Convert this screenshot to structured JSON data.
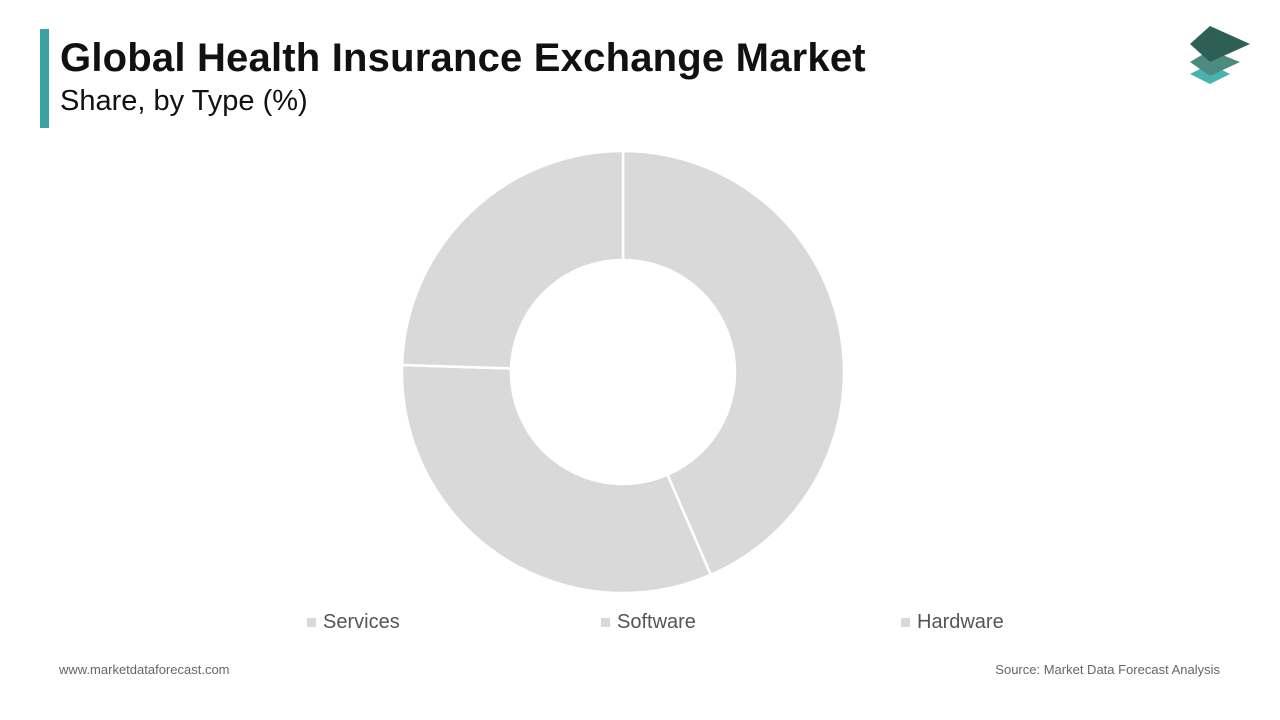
{
  "header": {
    "title": "Global Health Insurance Exchange Market",
    "subtitle": "Share, by Type (%)"
  },
  "colors": {
    "accent": "#3aa39d",
    "slice": "#d9d9d9",
    "logo_dark": "#2e5f57",
    "logo_mid": "#4d8a80",
    "logo_light": "#47b3ae"
  },
  "logo": {
    "icon": "stacked-layers-icon"
  },
  "chart_data": {
    "type": "pie",
    "donut": true,
    "categories": [
      "Services",
      "Software",
      "Hardware"
    ],
    "values": [
      43.5,
      32,
      24.5
    ],
    "legend_position": "bottom"
  },
  "footer": {
    "website": "www.marketdataforecast.com",
    "source": "Source: Market Data Forecast Analysis"
  }
}
